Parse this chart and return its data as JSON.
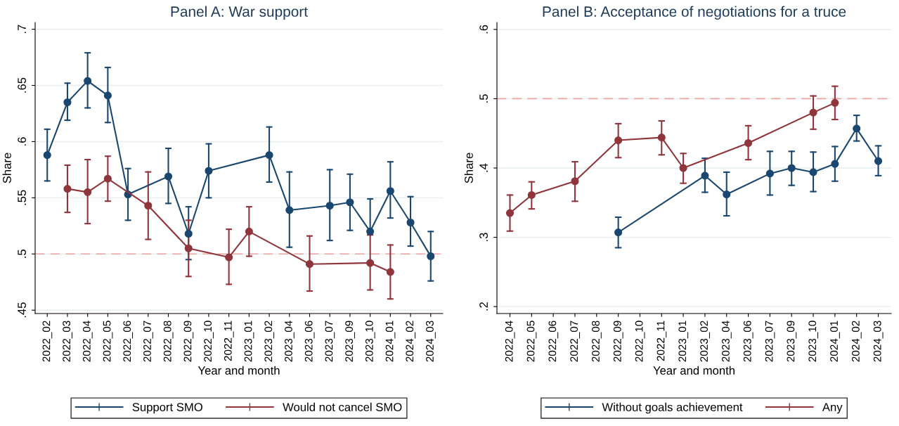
{
  "chart_data": [
    {
      "type": "line",
      "title": "Panel A: War support",
      "xlabel": "Year and month",
      "ylabel": "Share",
      "categories": [
        "2022_02",
        "2022_03",
        "2022_04",
        "2022_05",
        "2022_06",
        "2022_07",
        "2022_08",
        "2022_09",
        "2022_10",
        "2022_11",
        "2023_01",
        "2023_02",
        "2023_04",
        "2023_06",
        "2023_07",
        "2023_09",
        "2023_10",
        "2024_01",
        "2024_02",
        "2024_03"
      ],
      "series": [
        {
          "name": "Support SMO",
          "color": "#1a476f",
          "values": [
            0.588,
            0.635,
            0.654,
            0.641,
            0.553,
            null,
            0.569,
            0.518,
            0.574,
            null,
            null,
            0.588,
            0.539,
            null,
            0.543,
            0.546,
            0.52,
            0.556,
            0.528,
            0.498
          ],
          "errors": [
            [
              0.565,
              0.611
            ],
            [
              0.619,
              0.652
            ],
            [
              0.63,
              0.679
            ],
            [
              0.617,
              0.666
            ],
            [
              0.53,
              0.576
            ],
            null,
            [
              0.545,
              0.594
            ],
            [
              0.495,
              0.542
            ],
            [
              0.55,
              0.598
            ],
            null,
            null,
            [
              0.564,
              0.613
            ],
            [
              0.506,
              0.573
            ],
            null,
            [
              0.512,
              0.575
            ],
            [
              0.521,
              0.571
            ],
            [
              0.517,
              0.549
            ],
            [
              0.532,
              0.582
            ],
            [
              0.507,
              0.551
            ],
            [
              0.476,
              0.52
            ]
          ]
        },
        {
          "name": "Would not cancel SMO",
          "color": "#90353b",
          "values": [
            null,
            0.558,
            0.555,
            0.567,
            null,
            0.543,
            null,
            0.505,
            null,
            0.497,
            0.52,
            null,
            null,
            0.491,
            null,
            null,
            0.492,
            0.484,
            null,
            null
          ],
          "errors": [
            null,
            [
              0.537,
              0.579
            ],
            [
              0.527,
              0.584
            ],
            [
              0.547,
              0.587
            ],
            null,
            [
              0.513,
              0.573
            ],
            null,
            [
              0.48,
              0.53
            ],
            null,
            [
              0.473,
              0.522
            ],
            [
              0.498,
              0.542
            ],
            null,
            null,
            [
              0.467,
              0.516
            ],
            null,
            null,
            [
              0.468,
              0.517
            ],
            [
              0.46,
              0.508
            ],
            null,
            null
          ]
        }
      ],
      "ylim": [
        0.447,
        0.706
      ],
      "yticks": [
        {
          "value": 0.45,
          "label": ".45"
        },
        {
          "value": 0.5,
          "label": ".5"
        },
        {
          "value": 0.55,
          "label": ".55"
        },
        {
          "value": 0.6,
          "label": ".6"
        },
        {
          "value": 0.65,
          "label": ".65"
        },
        {
          "value": 0.7,
          "label": ".7"
        }
      ],
      "ref_lines": [
        {
          "axis": "y",
          "value": 0.5,
          "color": "#f4a3a3",
          "line_style": "dashed"
        }
      ],
      "grid": "y",
      "legend": "bottom",
      "marker": "circle",
      "line_style": "solid"
    },
    {
      "type": "line",
      "title": "Panel B: Acceptance of negotiations for a truce",
      "xlabel": "Year and month",
      "ylabel": "Share",
      "categories": [
        "2022_04",
        "2022_05",
        "2022_06",
        "2022_07",
        "2022_08",
        "2022_09",
        "2022_10",
        "2022_11",
        "2023_01",
        "2023_02",
        "2023_04",
        "2023_06",
        "2023_07",
        "2023_09",
        "2023_10",
        "2024_01",
        "2024_02",
        "2024_03"
      ],
      "series": [
        {
          "name": "Without goals achievement",
          "color": "#1a476f",
          "values": [
            null,
            null,
            null,
            null,
            null,
            0.307,
            null,
            null,
            null,
            0.389,
            0.362,
            null,
            0.392,
            0.4,
            0.394,
            0.406,
            0.457,
            0.41
          ],
          "errors": [
            null,
            null,
            null,
            null,
            null,
            [
              0.285,
              0.329
            ],
            null,
            null,
            null,
            [
              0.365,
              0.414
            ],
            [
              0.331,
              0.394
            ],
            null,
            [
              0.361,
              0.424
            ],
            [
              0.375,
              0.424
            ],
            [
              0.366,
              0.423
            ],
            [
              0.381,
              0.431
            ],
            [
              0.439,
              0.476
            ],
            [
              0.389,
              0.432
            ]
          ]
        },
        {
          "name": "Any",
          "color": "#90353b",
          "values": [
            0.335,
            0.361,
            null,
            0.381,
            null,
            0.44,
            null,
            0.444,
            0.4,
            null,
            null,
            0.436,
            null,
            null,
            0.48,
            0.494,
            null,
            null
          ],
          "errors": [
            [
              0.309,
              0.361
            ],
            [
              0.341,
              0.38
            ],
            null,
            [
              0.352,
              0.409
            ],
            null,
            [
              0.415,
              0.464
            ],
            null,
            [
              0.419,
              0.468
            ],
            [
              0.378,
              0.421
            ],
            null,
            null,
            [
              0.412,
              0.461
            ],
            null,
            null,
            [
              0.456,
              0.504
            ],
            [
              0.47,
              0.518
            ],
            null,
            null
          ]
        }
      ],
      "ylim": [
        0.19,
        0.61
      ],
      "yticks": [
        {
          "value": 0.2,
          "label": ".2"
        },
        {
          "value": 0.3,
          "label": ".3"
        },
        {
          "value": 0.4,
          "label": ".4"
        },
        {
          "value": 0.5,
          "label": ".5"
        },
        {
          "value": 0.6,
          "label": ".6"
        }
      ],
      "ref_lines": [
        {
          "axis": "y",
          "value": 0.5,
          "color": "#f4a3a3",
          "line_style": "dashed"
        }
      ],
      "grid": "y",
      "legend": "bottom",
      "marker": "circle",
      "line_style": "solid"
    }
  ]
}
